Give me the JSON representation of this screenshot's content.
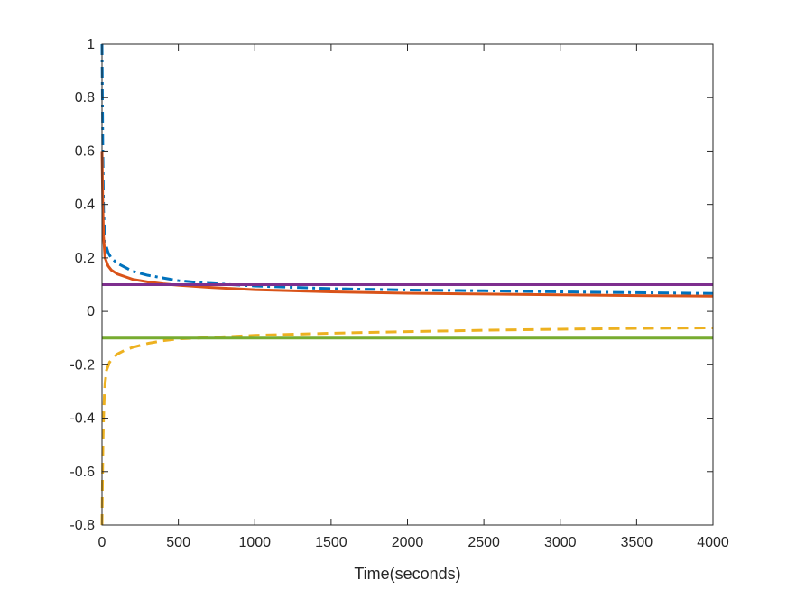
{
  "chart_data": {
    "type": "line",
    "title": "",
    "xlabel": "Time(seconds)",
    "ylabel": "",
    "xlim": [
      0,
      4000
    ],
    "ylim": [
      -0.8,
      1
    ],
    "grid": false,
    "legend": "none",
    "x_ticks": [
      0,
      500,
      1000,
      1500,
      2000,
      2500,
      3000,
      3500,
      4000
    ],
    "x_tick_labels": [
      "0",
      "500",
      "1000",
      "1500",
      "2000",
      "2500",
      "3000",
      "3500",
      "4000"
    ],
    "y_ticks": [
      -0.8,
      -0.6,
      -0.4,
      -0.2,
      0,
      0.2,
      0.4,
      0.6,
      0.8,
      1
    ],
    "y_tick_labels": [
      "-0.8",
      "-0.6",
      "-0.4",
      "-0.2",
      "0",
      "0.2",
      "0.4",
      "0.6",
      "0.8",
      "1"
    ],
    "series": [
      {
        "color": "#0072BD",
        "style": "dashdot",
        "x": [
          0,
          5,
          10,
          20,
          40,
          60,
          100,
          150,
          200,
          300,
          400,
          500,
          700,
          1000,
          1500,
          2000,
          2500,
          3000,
          3500,
          4000
        ],
        "y": [
          1.0,
          0.62,
          0.38,
          0.26,
          0.22,
          0.2,
          0.18,
          0.165,
          0.15,
          0.135,
          0.125,
          0.115,
          0.105,
          0.095,
          0.085,
          0.08,
          0.077,
          0.073,
          0.07,
          0.067
        ]
      },
      {
        "color": "#D95319",
        "style": "solid",
        "x": [
          0,
          5,
          10,
          20,
          40,
          60,
          100,
          150,
          200,
          300,
          400,
          500,
          700,
          1000,
          1500,
          2000,
          2500,
          3000,
          3500,
          4000
        ],
        "y": [
          0.6,
          0.4,
          0.28,
          0.2,
          0.17,
          0.155,
          0.14,
          0.13,
          0.12,
          0.11,
          0.103,
          0.098,
          0.09,
          0.081,
          0.073,
          0.068,
          0.065,
          0.062,
          0.059,
          0.057
        ]
      },
      {
        "color": "#EDB120",
        "style": "dashed",
        "x": [
          0,
          3,
          6,
          10,
          15,
          20,
          30,
          50,
          70,
          100,
          150,
          200,
          300,
          400,
          500,
          700,
          1000,
          1500,
          2000,
          2500,
          3000,
          3500,
          4000
        ],
        "y": [
          -0.8,
          -0.64,
          -0.5,
          -0.4,
          -0.32,
          -0.27,
          -0.22,
          -0.19,
          -0.175,
          -0.16,
          -0.145,
          -0.135,
          -0.12,
          -0.11,
          -0.103,
          -0.098,
          -0.09,
          -0.082,
          -0.076,
          -0.071,
          -0.067,
          -0.064,
          -0.062
        ]
      },
      {
        "color": "#7E2F8E",
        "style": "solid",
        "x": [
          0,
          4000
        ],
        "y": [
          0.1,
          0.1
        ]
      },
      {
        "color": "#77AC30",
        "style": "solid",
        "x": [
          0,
          4000
        ],
        "y": [
          -0.1,
          -0.1
        ]
      }
    ]
  }
}
